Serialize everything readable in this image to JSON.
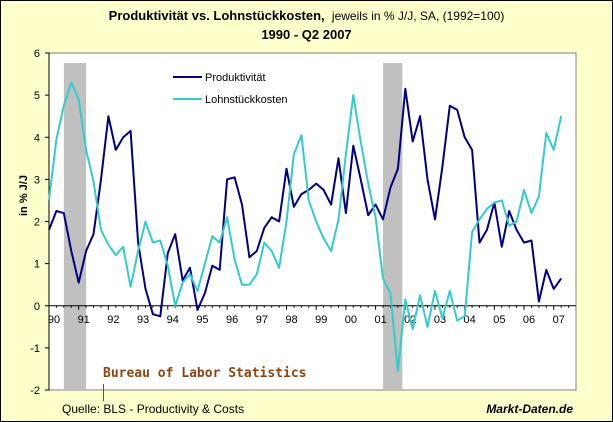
{
  "chart_data": {
    "type": "line",
    "title": "Produktivität vs. Lohnstückkosten,",
    "subtitle": "jeweils in % J/J, SA, (1992=100)",
    "period": "1990 - Q2 2007",
    "ylabel": "in % J/J",
    "ylim": [
      -2,
      6
    ],
    "yticks": [
      -2,
      -1,
      0,
      1,
      2,
      3,
      4,
      5,
      6
    ],
    "xlabels": [
      "90",
      "91",
      "92",
      "93",
      "94",
      "95",
      "96",
      "97",
      "98",
      "99",
      "00",
      "01",
      "02",
      "03",
      "04",
      "05",
      "06",
      "07"
    ],
    "recessions": [
      [
        1990.5,
        1991.25
      ],
      [
        2001.25,
        2001.9
      ]
    ],
    "series": [
      {
        "name": "Produktivität",
        "color": "#000080",
        "x": [
          1990.0,
          1990.25,
          1990.5,
          1990.75,
          1991.0,
          1991.25,
          1991.5,
          1991.75,
          1992.0,
          1992.25,
          1992.5,
          1992.75,
          1993.0,
          1993.25,
          1993.5,
          1993.75,
          1994.0,
          1994.25,
          1994.5,
          1994.75,
          1995.0,
          1995.25,
          1995.5,
          1995.75,
          1996.0,
          1996.25,
          1996.5,
          1996.75,
          1997.0,
          1997.25,
          1997.5,
          1997.75,
          1998.0,
          1998.25,
          1998.5,
          1998.75,
          1999.0,
          1999.25,
          1999.5,
          1999.75,
          2000.0,
          2000.25,
          2000.5,
          2000.75,
          2001.0,
          2001.25,
          2001.5,
          2001.75,
          2002.0,
          2002.25,
          2002.5,
          2002.75,
          2003.0,
          2003.25,
          2003.5,
          2003.75,
          2004.0,
          2004.25,
          2004.5,
          2004.75,
          2005.0,
          2005.25,
          2005.5,
          2005.75,
          2006.0,
          2006.25,
          2006.5,
          2006.75,
          2007.0,
          2007.25
        ],
        "values": [
          1.8,
          2.25,
          2.2,
          1.3,
          0.55,
          1.3,
          1.7,
          3.0,
          4.5,
          3.7,
          4.0,
          4.15,
          1.5,
          0.4,
          -0.2,
          -0.25,
          1.25,
          1.7,
          0.6,
          0.9,
          -0.1,
          0.3,
          0.95,
          0.85,
          3.0,
          3.05,
          2.4,
          1.15,
          1.3,
          1.85,
          2.1,
          2.0,
          3.25,
          2.35,
          2.65,
          2.75,
          2.9,
          2.75,
          2.4,
          3.5,
          2.2,
          3.8,
          3.0,
          2.15,
          2.4,
          2.05,
          2.8,
          3.25,
          5.15,
          3.9,
          4.5,
          3.0,
          2.05,
          3.3,
          4.75,
          4.65,
          4.0,
          3.7,
          1.5,
          1.8,
          2.45,
          1.4,
          2.25,
          1.8,
          1.5,
          1.55,
          0.1,
          0.85,
          0.4,
          0.65
        ]
      },
      {
        "name": "Lohnstückkosten",
        "color": "#33cccc",
        "x": [
          1990.0,
          1990.25,
          1990.5,
          1990.75,
          1991.0,
          1991.25,
          1991.5,
          1991.75,
          1992.0,
          1992.25,
          1992.5,
          1992.75,
          1993.0,
          1993.25,
          1993.5,
          1993.75,
          1994.0,
          1994.25,
          1994.5,
          1994.75,
          1995.0,
          1995.25,
          1995.5,
          1995.75,
          1996.0,
          1996.25,
          1996.5,
          1996.75,
          1997.0,
          1997.25,
          1997.5,
          1997.75,
          1998.0,
          1998.25,
          1998.5,
          1998.75,
          1999.0,
          1999.25,
          1999.5,
          1999.75,
          2000.0,
          2000.25,
          2000.5,
          2000.75,
          2001.0,
          2001.25,
          2001.5,
          2001.75,
          2002.0,
          2002.25,
          2002.5,
          2002.75,
          2003.0,
          2003.25,
          2003.5,
          2003.75,
          2004.0,
          2004.25,
          2004.5,
          2004.75,
          2005.0,
          2005.25,
          2005.5,
          2005.75,
          2006.0,
          2006.25,
          2006.5,
          2006.75,
          2007.0,
          2007.25
        ],
        "values": [
          2.5,
          3.95,
          4.75,
          5.3,
          4.9,
          3.7,
          2.95,
          1.8,
          1.45,
          1.2,
          1.4,
          0.45,
          1.3,
          2.0,
          1.5,
          1.55,
          0.95,
          0.0,
          0.55,
          0.75,
          0.35,
          1.0,
          1.65,
          1.5,
          2.1,
          1.1,
          0.5,
          0.5,
          0.75,
          1.5,
          1.3,
          0.9,
          2.0,
          3.6,
          4.05,
          2.5,
          2.0,
          1.6,
          1.3,
          2.05,
          3.6,
          5.0,
          3.9,
          2.9,
          2.1,
          0.65,
          0.3,
          -1.55,
          0.15,
          -0.55,
          0.25,
          -0.5,
          0.35,
          -0.3,
          0.35,
          -0.35,
          -0.25,
          1.75,
          2.05,
          2.3,
          2.45,
          2.5,
          1.9,
          2.0,
          2.75,
          2.2,
          2.6,
          4.1,
          3.7,
          4.5
        ]
      }
    ]
  },
  "annotations": {
    "source": "Quelle: BLS - Productivity & Costs",
    "brand": "Markt-Daten.de",
    "watermark": "Bureau of Labor Statistics"
  }
}
